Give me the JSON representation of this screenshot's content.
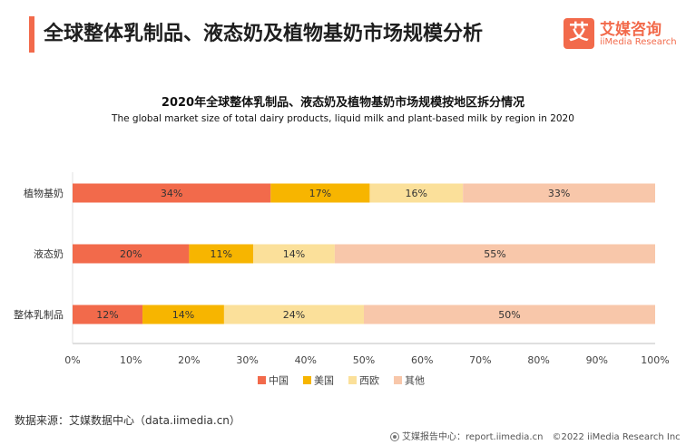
{
  "header": {
    "title": "全球整体乳制品、液态奶及植物基奶市场规模分析",
    "logo_mark": "艾",
    "logo_cn": "艾媒咨询",
    "logo_en": "iiMedia Research"
  },
  "chart_data": {
    "type": "bar",
    "orientation": "horizontal",
    "stacked": "percent",
    "title": "2020年全球整体乳制品、液态奶及植物基奶市场规模按地区拆分情况",
    "subtitle": "The global market size of total dairy products, liquid milk and plant-based milk by region in 2020",
    "categories": [
      "植物基奶",
      "液态奶",
      "整体乳制品"
    ],
    "series": [
      {
        "name": "中国",
        "values": [
          34,
          20,
          12
        ],
        "labels": [
          "34%",
          "20%",
          "12%"
        ],
        "color": "#f26a4b"
      },
      {
        "name": "美国",
        "values": [
          17,
          11,
          14
        ],
        "labels": [
          "17%",
          "11%",
          "14%"
        ],
        "color": "#f7b500"
      },
      {
        "name": "西欧",
        "values": [
          16,
          14,
          24
        ],
        "labels": [
          "16%",
          "14%",
          "24%"
        ],
        "color": "#fbe09a"
      },
      {
        "name": "其他",
        "values": [
          33,
          55,
          50
        ],
        "labels": [
          "33%",
          "55%",
          "50%"
        ],
        "color": "#f8c7aa"
      }
    ],
    "xticks": [
      0,
      10,
      20,
      30,
      40,
      50,
      60,
      70,
      80,
      90,
      100
    ],
    "xtick_labels": [
      "0%",
      "10%",
      "20%",
      "30%",
      "40%",
      "50%",
      "60%",
      "70%",
      "80%",
      "90%",
      "100%"
    ],
    "xlim": [
      0,
      100
    ],
    "grid": false,
    "legend_position": "bottom-center"
  },
  "source": "数据来源：艾媒数据中心（data.iimedia.cn）",
  "footer": {
    "report_site": "艾媒报告中心：report.iimedia.cn",
    "copyright": "©2022  iiMedia Research  Inc"
  }
}
